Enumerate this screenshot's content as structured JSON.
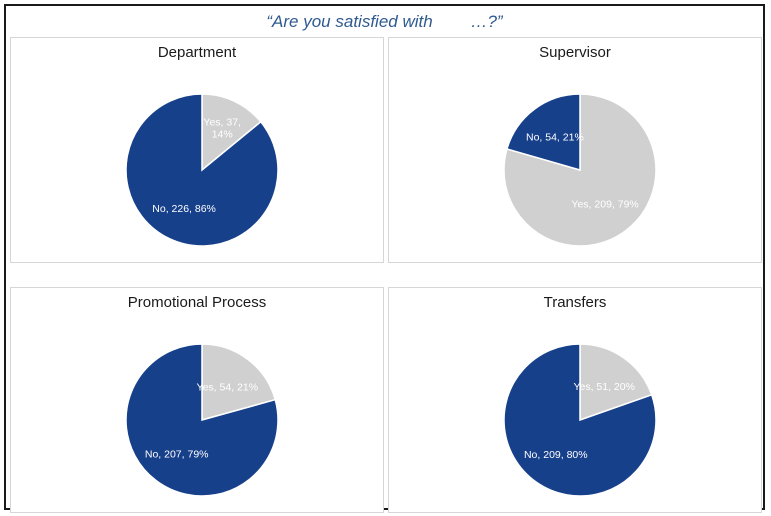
{
  "header": {
    "title": "“Are you satisfied with        …?”"
  },
  "colors": {
    "yes": "#d0d0d0",
    "no": "#17408b",
    "title": "#2f5a8f"
  },
  "chart_data": [
    {
      "type": "pie",
      "title": "Department",
      "slices": [
        {
          "label": "Yes",
          "value": 37,
          "percent": 14,
          "color": "#d0d0d0",
          "data_label": "Yes, 37,\n14%"
        },
        {
          "label": "No",
          "value": 226,
          "percent": 86,
          "color": "#17408b",
          "data_label": "No, 226, 86%"
        }
      ]
    },
    {
      "type": "pie",
      "title": "Supervisor",
      "slices": [
        {
          "label": "Yes",
          "value": 209,
          "percent": 79,
          "color": "#d0d0d0",
          "data_label": "Yes, 209, 79%"
        },
        {
          "label": "No",
          "value": 54,
          "percent": 21,
          "color": "#17408b",
          "data_label": "No, 54, 21%"
        }
      ]
    },
    {
      "type": "pie",
      "title": "Promotional Process",
      "slices": [
        {
          "label": "Yes",
          "value": 54,
          "percent": 21,
          "color": "#d0d0d0",
          "data_label": "Yes, 54, 21%"
        },
        {
          "label": "No",
          "value": 207,
          "percent": 79,
          "color": "#17408b",
          "data_label": "No, 207, 79%"
        }
      ]
    },
    {
      "type": "pie",
      "title": "Transfers",
      "slices": [
        {
          "label": "Yes",
          "value": 51,
          "percent": 20,
          "color": "#d0d0d0",
          "data_label": "Yes, 51, 20%"
        },
        {
          "label": "No",
          "value": 209,
          "percent": 80,
          "color": "#17408b",
          "data_label": "No, 209, 80%"
        }
      ]
    }
  ]
}
